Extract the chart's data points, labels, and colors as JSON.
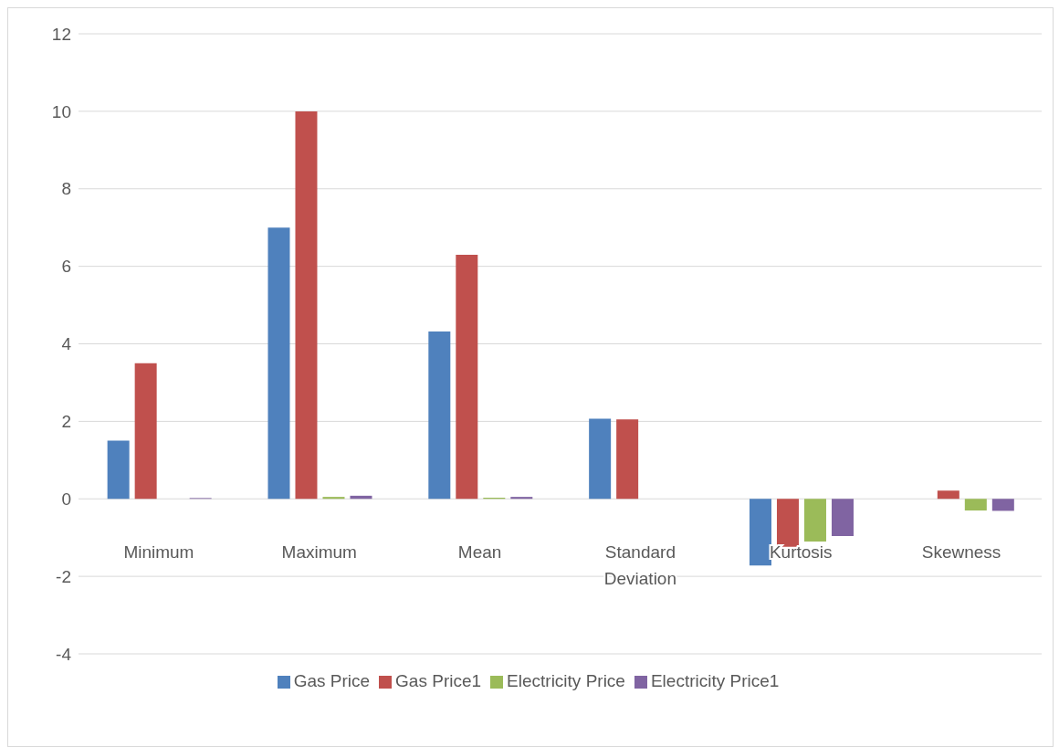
{
  "chart_data": {
    "type": "bar",
    "categories": [
      "Minimum",
      "Maximum",
      "Mean",
      "Standard Deviation",
      "Kurtosis",
      "Skewness"
    ],
    "series": [
      {
        "name": "Gas Price",
        "color": "#4f81bd",
        "values": [
          1.5,
          7.0,
          4.32,
          2.07,
          -1.72,
          0
        ]
      },
      {
        "name": "Gas Price1",
        "color": "#c0504d",
        "values": [
          3.5,
          10.0,
          6.3,
          2.05,
          -1.24,
          0.21
        ]
      },
      {
        "name": "Electricity Price",
        "color": "#9bbb59",
        "values": [
          0,
          0.05,
          0.03,
          0,
          -1.1,
          -0.3
        ]
      },
      {
        "name": "Electricity Price1",
        "color": "#8064a2",
        "values": [
          0.02,
          0.08,
          0.05,
          0,
          -0.96,
          -0.31
        ]
      }
    ],
    "ylim": [
      -4,
      12
    ],
    "yticks": [
      -4,
      -2,
      0,
      2,
      4,
      6,
      8,
      10,
      12
    ],
    "grid": "y",
    "legend": "bottom"
  }
}
